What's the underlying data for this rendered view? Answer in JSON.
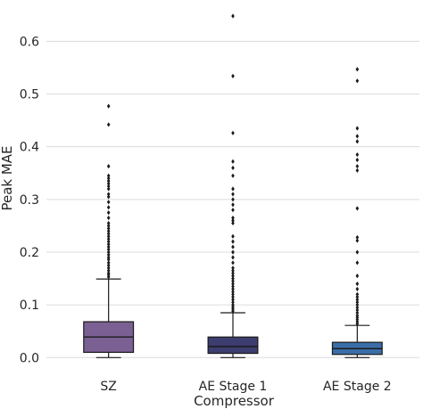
{
  "chart_data": {
    "type": "box",
    "title": "",
    "xlabel": "Compressor",
    "ylabel": "Peak MAE",
    "ylim": [
      -0.035,
      0.675
    ],
    "yticks": [
      0.0,
      0.1,
      0.2,
      0.3,
      0.4,
      0.5,
      0.6
    ],
    "ytick_labels": [
      "0.0",
      "0.1",
      "0.2",
      "0.3",
      "0.4",
      "0.5",
      "0.6"
    ],
    "grid": true,
    "categories": [
      "SZ",
      "AE Stage 1",
      "AE Stage 2"
    ],
    "series": [
      {
        "category": "SZ",
        "color": "#7b6094",
        "whisker_low": 0.0,
        "q1": 0.01,
        "median": 0.039,
        "q3": 0.068,
        "whisker_high": 0.149,
        "outliers": [
          0.153,
          0.157,
          0.16,
          0.165,
          0.17,
          0.175,
          0.18,
          0.186,
          0.19,
          0.195,
          0.2,
          0.205,
          0.21,
          0.215,
          0.22,
          0.225,
          0.23,
          0.235,
          0.24,
          0.245,
          0.25,
          0.255,
          0.265,
          0.275,
          0.285,
          0.295,
          0.305,
          0.31,
          0.32,
          0.325,
          0.33,
          0.335,
          0.34,
          0.345,
          0.363,
          0.442,
          0.477
        ]
      },
      {
        "category": "AE Stage 1",
        "color": "#3d3d6f",
        "whisker_low": 0.0,
        "q1": 0.008,
        "median": 0.021,
        "q3": 0.039,
        "whisker_high": 0.085,
        "outliers": [
          0.088,
          0.092,
          0.096,
          0.1,
          0.105,
          0.11,
          0.115,
          0.12,
          0.125,
          0.13,
          0.135,
          0.14,
          0.145,
          0.15,
          0.155,
          0.16,
          0.165,
          0.17,
          0.18,
          0.19,
          0.2,
          0.21,
          0.22,
          0.23,
          0.255,
          0.26,
          0.265,
          0.28,
          0.29,
          0.3,
          0.31,
          0.32,
          0.345,
          0.36,
          0.372,
          0.426,
          0.534,
          0.648
        ]
      },
      {
        "category": "AE Stage 2",
        "color": "#3a6ea8",
        "whisker_low": 0.0,
        "q1": 0.006,
        "median": 0.017,
        "q3": 0.029,
        "whisker_high": 0.061,
        "outliers": [
          0.064,
          0.068,
          0.072,
          0.076,
          0.08,
          0.085,
          0.09,
          0.095,
          0.1,
          0.105,
          0.11,
          0.115,
          0.12,
          0.13,
          0.14,
          0.155,
          0.18,
          0.2,
          0.222,
          0.228,
          0.283,
          0.355,
          0.363,
          0.375,
          0.385,
          0.41,
          0.42,
          0.435,
          0.525,
          0.547
        ]
      }
    ]
  }
}
